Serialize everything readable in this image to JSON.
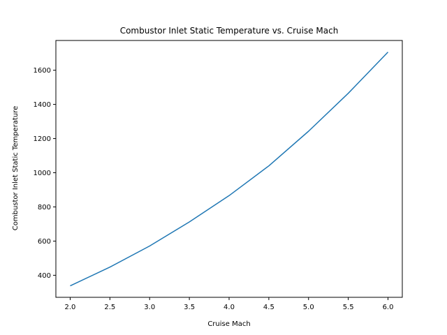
{
  "chart_data": {
    "type": "line",
    "title": "Combustor Inlet Static Temperature vs. Cruise Mach",
    "xlabel": "Cruise Mach",
    "ylabel": "Combustor Inlet Static Temperature",
    "xlim": [
      1.82,
      6.18
    ],
    "ylim": [
      271,
      1774
    ],
    "xticks": [
      2.0,
      2.5,
      3.0,
      3.5,
      4.0,
      4.5,
      5.0,
      5.5,
      6.0
    ],
    "xtick_labels": [
      "2.0",
      "2.5",
      "3.0",
      "3.5",
      "4.0",
      "4.5",
      "5.0",
      "5.5",
      "6.0"
    ],
    "yticks": [
      400,
      600,
      800,
      1000,
      1200,
      1400,
      1600
    ],
    "ytick_labels": [
      "400",
      "600",
      "800",
      "1000",
      "1200",
      "1400",
      "1600"
    ],
    "grid": false,
    "series": [
      {
        "color": "#1f77b4",
        "x": [
          2.0,
          2.5,
          3.0,
          3.5,
          4.0,
          4.5,
          5.0,
          5.5,
          6.0
        ],
        "y": [
          338,
          448,
          571,
          712,
          866,
          1040,
          1243,
          1465,
          1706
        ]
      }
    ]
  }
}
